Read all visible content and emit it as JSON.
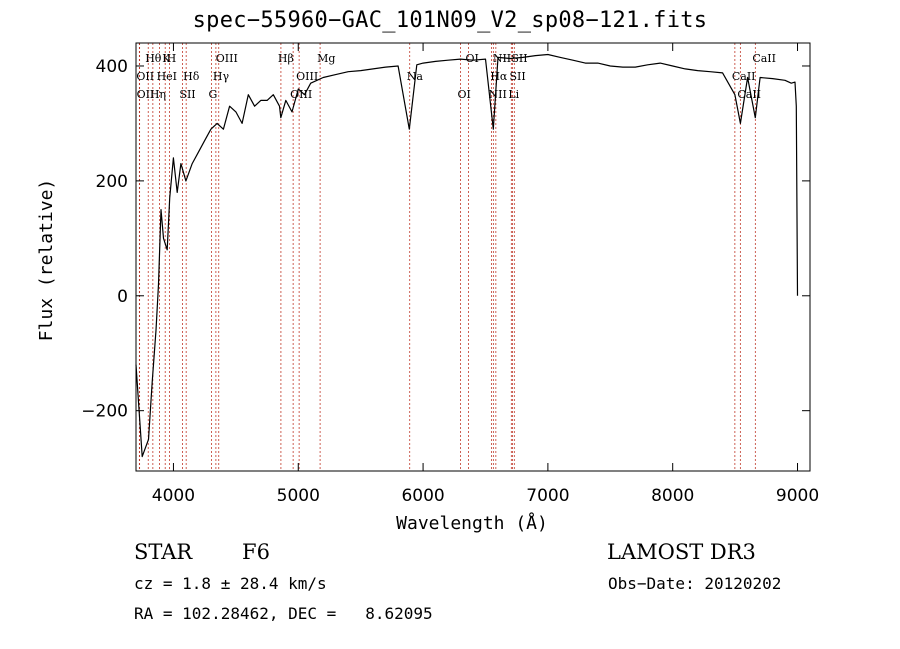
{
  "chart_data": {
    "type": "line",
    "title": "spec−55960−GAC_101N09_V2_sp08−121.fits",
    "xlabel": "Wavelength (Å)",
    "ylabel": "Flux (relative)",
    "xlim": [
      3700,
      9100
    ],
    "ylim": [
      -305,
      440
    ],
    "xticks": [
      4000,
      5000,
      6000,
      7000,
      8000,
      9000
    ],
    "yticks": [
      -200,
      0,
      200,
      400
    ],
    "ytick_labels": [
      "−200",
      "0",
      "200",
      "400"
    ],
    "grid": false,
    "series": [
      {
        "name": "flux",
        "x": [
          3700,
          3750,
          3800,
          3830,
          3860,
          3880,
          3900,
          3920,
          3950,
          3970,
          4000,
          4030,
          4060,
          4100,
          4150,
          4200,
          4250,
          4300,
          4350,
          4400,
          4450,
          4500,
          4550,
          4600,
          4650,
          4700,
          4750,
          4800,
          4850,
          4860,
          4900,
          4950,
          5000,
          5050,
          5100,
          5150,
          5200,
          5300,
          5400,
          5500,
          5600,
          5700,
          5800,
          5890,
          5950,
          6000,
          6100,
          6200,
          6300,
          6400,
          6500,
          6563,
          6600,
          6700,
          6800,
          6900,
          7000,
          7100,
          7200,
          7300,
          7400,
          7500,
          7600,
          7700,
          7800,
          7900,
          8000,
          8100,
          8200,
          8300,
          8400,
          8498,
          8542,
          8600,
          8662,
          8700,
          8800,
          8900,
          8950,
          8980,
          8990,
          9000
        ],
        "y": [
          -120,
          -280,
          -250,
          -150,
          -60,
          20,
          150,
          100,
          80,
          170,
          240,
          180,
          230,
          200,
          230,
          250,
          270,
          290,
          300,
          290,
          330,
          320,
          300,
          350,
          330,
          340,
          340,
          350,
          330,
          310,
          340,
          320,
          360,
          350,
          370,
          375,
          380,
          385,
          390,
          392,
          395,
          398,
          400,
          290,
          402,
          405,
          408,
          410,
          412,
          410,
          412,
          290,
          415,
          413,
          415,
          418,
          420,
          415,
          410,
          405,
          405,
          400,
          398,
          398,
          402,
          405,
          400,
          395,
          392,
          390,
          388,
          350,
          300,
          380,
          310,
          380,
          378,
          375,
          370,
          372,
          330,
          0
        ]
      }
    ],
    "lines": [
      {
        "label": "Hθ",
        "x": 3798
      },
      {
        "label": "OII",
        "x": 3727
      },
      {
        "label": "OII",
        "x": 3729
      },
      {
        "label": "K",
        "x": 3934
      },
      {
        "label": "HeI",
        "x": 3889
      },
      {
        "label": "Hη",
        "x": 3835
      },
      {
        "label": "H",
        "x": 3969
      },
      {
        "label": "Hδ",
        "x": 4102
      },
      {
        "label": "SII",
        "x": 4072
      },
      {
        "label": "OIII",
        "x": 4363
      },
      {
        "label": "Hγ",
        "x": 4340
      },
      {
        "label": "G",
        "x": 4305
      },
      {
        "label": "Hβ",
        "x": 4861
      },
      {
        "label": "OIII",
        "x": 5007
      },
      {
        "label": "OIII",
        "x": 4959
      },
      {
        "label": "Mg",
        "x": 5175
      },
      {
        "label": "Na",
        "x": 5893
      },
      {
        "label": "OI",
        "x": 6300
      },
      {
        "label": "OI",
        "x": 6364
      },
      {
        "label": "Hα",
        "x": 6563
      },
      {
        "label": "NII",
        "x": 6548
      },
      {
        "label": "NII",
        "x": 6583
      },
      {
        "label": "SII",
        "x": 6716
      },
      {
        "label": "Li",
        "x": 6707
      },
      {
        "label": "SII",
        "x": 6731
      },
      {
        "label": "CaII",
        "x": 8498
      },
      {
        "label": "CaII",
        "x": 8542
      },
      {
        "label": "CaII",
        "x": 8662
      }
    ]
  },
  "info": {
    "object_class": "STAR",
    "subclass": "F6",
    "survey": "LAMOST DR3",
    "redshift": "cz = 1.8 ± 28.4 km/s",
    "obs_date": "Obs−Date: 20120202",
    "coords": "RA = 102.28462, DEC =   8.62095"
  }
}
